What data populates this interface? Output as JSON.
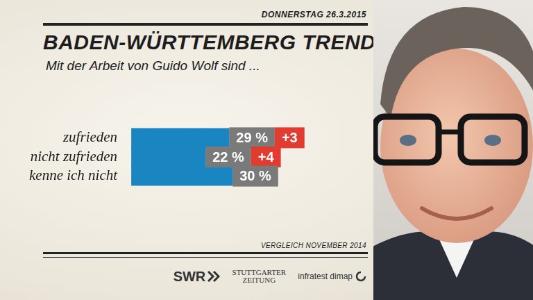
{
  "header": {
    "date": "DONNERSTAG 26.3.2015"
  },
  "chart_data": {
    "type": "bar",
    "orientation": "horizontal",
    "title": "BADEN-WÜRTTEMBERG TREND",
    "subtitle": "Mit der Arbeit von Guido Wolf sind ...",
    "categories": [
      "zufrieden",
      "nicht zufrieden",
      "kenne ich nicht"
    ],
    "values": [
      29,
      22,
      30
    ],
    "value_labels": [
      "29 %",
      "22 %",
      "30 %"
    ],
    "changes": [
      3,
      4,
      null
    ],
    "change_labels": [
      "+3",
      "+4",
      null
    ],
    "color": "#1a86c1",
    "xlim": [
      0,
      70
    ],
    "tick_labels": "y",
    "grid": false,
    "data_labels": true
  },
  "footer": {
    "note": "VERGLEICH NOVEMBER 2014",
    "logos": [
      "SWR",
      "STUTTGARTER ZEITUNG",
      "infratest dimap"
    ]
  }
}
